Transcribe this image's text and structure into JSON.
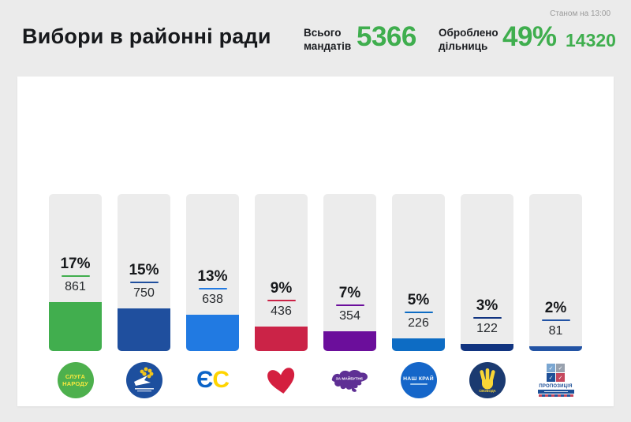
{
  "header": {
    "title": "Вибори в районні ради",
    "total_label_line1": "Всього",
    "total_label_line2": "мандатів",
    "total_value": "5366",
    "processed_label_line1": "Оброблено",
    "processed_label_line2": "дільниць",
    "processed_pct": "49%",
    "processed_count": "14320",
    "timestamp": "Станом на 13:00",
    "accent_color": "#3fae4e"
  },
  "chart_data": {
    "type": "bar",
    "title": "Вибори в районні ради",
    "units": "мандати",
    "total_mandates": 5366,
    "precincts_processed_percent": 49,
    "precincts_processed_count": 14320,
    "grid": false,
    "legend_position": "none",
    "value_axis_hidden": true,
    "series": [
      {
        "logo": "sluha-narodu-logo",
        "percent": 17,
        "percent_label": "17%",
        "seats": 861,
        "color": "#41ae4e"
      },
      {
        "logo": "opposition-platform-logo",
        "percent": 15,
        "percent_label": "15%",
        "seats": 750,
        "color": "#1f4f9e"
      },
      {
        "logo": "european-solidarity-logo",
        "percent": 13,
        "percent_label": "13%",
        "seats": 638,
        "color": "#217ae2"
      },
      {
        "logo": "batkivshchyna-heart-logo",
        "percent": 9,
        "percent_label": "9%",
        "seats": 436,
        "color": "#cb2347"
      },
      {
        "logo": "za-maibutne-logo",
        "percent": 7,
        "percent_label": "7%",
        "seats": 354,
        "color": "#6b0e9b"
      },
      {
        "logo": "nash-krai-logo",
        "percent": 5,
        "percent_label": "5%",
        "seats": 226,
        "color": "#0d6cc4"
      },
      {
        "logo": "svoboda-logo",
        "percent": 3,
        "percent_label": "3%",
        "seats": 122,
        "color": "#113480"
      },
      {
        "logo": "propozytsia-logo",
        "percent": 2,
        "percent_label": "2%",
        "seats": 81,
        "color": "#2253a4"
      }
    ]
  },
  "logos": {
    "sluga_line1": "СЛУГА",
    "sluga_line2": "НАРОДУ",
    "es_letter_blue": "Є",
    "es_letter_yellow": "С",
    "za_maibutne": "ЗА МАЙБУТНЄ",
    "nash_krai": "НАШ КРАЙ",
    "svoboda": "СВОБОДА",
    "propozytsia": "ПРОПОЗИЦІЯ",
    "check_glyph": "✓"
  }
}
